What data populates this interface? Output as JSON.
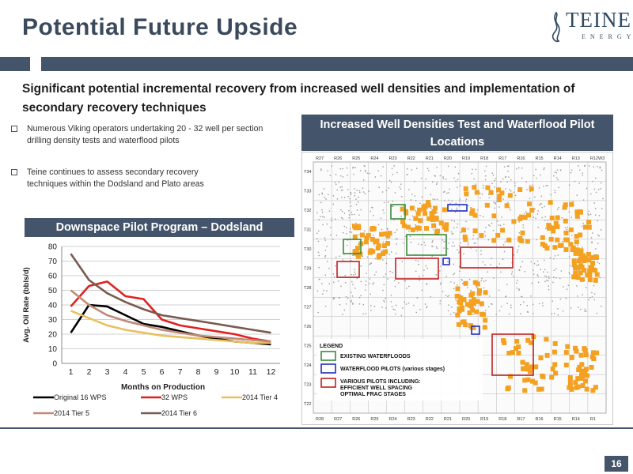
{
  "title": "Potential Future Upside",
  "logo": {
    "word": "TEINE",
    "sub": "ENERGY"
  },
  "subtitle": "Significant potential incremental recovery from increased well densities and implementation of secondary recovery techniques",
  "bullets": [
    "Numerous Viking operators undertaking 20 - 32 well per section drilling density tests and waterflood pilots",
    "Teine continues to assess secondary recovery techniques within the Dodsland and Plato areas"
  ],
  "chart_header": "Downspace Pilot Program – Dodsland",
  "map_header": "Increased Well Densities Test and Waterflood Pilot Locations",
  "page_number": "16",
  "colors": {
    "band": "#44546a",
    "accent_orange": "#f4a020"
  },
  "chart_data": {
    "type": "line",
    "x": [
      1,
      2,
      3,
      4,
      5,
      6,
      7,
      8,
      9,
      10,
      11,
      12
    ],
    "xlabel": "Months on Production",
    "ylabel": "Avg. Oil Rate (bbls/d)",
    "ylim": [
      0,
      80
    ],
    "yticks": [
      0,
      10,
      20,
      30,
      40,
      50,
      60,
      70,
      80
    ],
    "grid": true,
    "legend": "bottom",
    "series": [
      {
        "name": "Original 16 WPS",
        "color": "#000000",
        "values": [
          21,
          40,
          39,
          33,
          27,
          25,
          22,
          19,
          17,
          15,
          14,
          13
        ]
      },
      {
        "name": "32 WPS",
        "color": "#e02020",
        "values": [
          39,
          53,
          56,
          46,
          44,
          30,
          26,
          24,
          22,
          20,
          17,
          15
        ]
      },
      {
        "name": "2014 Tier 4",
        "color": "#e8c060",
        "values": [
          36,
          31,
          26,
          23,
          21,
          19,
          18,
          17,
          16,
          15,
          14,
          14
        ]
      },
      {
        "name": "2014 Tier 5",
        "color": "#c08a78",
        "values": [
          50,
          40,
          33,
          29,
          26,
          23,
          21,
          19,
          18,
          17,
          16,
          15
        ]
      },
      {
        "name": "2014 Tier 6",
        "color": "#7a5a50",
        "values": [
          75,
          57,
          48,
          42,
          37,
          33,
          31,
          29,
          27,
          25,
          23,
          21
        ]
      }
    ]
  },
  "map": {
    "top_ranges": [
      "R27",
      "R26",
      "R25",
      "R24",
      "R23",
      "R22",
      "R21",
      "R20",
      "R19",
      "R18",
      "R17",
      "R16",
      "R15",
      "R14",
      "R13",
      "R12W3"
    ],
    "bottom_ranges": [
      "R28",
      "R27",
      "R26",
      "R25",
      "R24",
      "R23",
      "R22",
      "R21",
      "R20",
      "R19",
      "R18",
      "R17",
      "R16",
      "R15",
      "R14",
      "R1"
    ],
    "townships": [
      "T34",
      "T33",
      "T32",
      "T31",
      "T30",
      "T29",
      "T28",
      "T27",
      "T26",
      "T25",
      "T24",
      "T23",
      "T22"
    ],
    "legend": {
      "title": "LEGEND",
      "items": [
        {
          "label": "EXISTING WATERFLOODS",
          "color": "#3a8a3a"
        },
        {
          "label": "WATERFLOOD PILOTS (various stages)",
          "color": "#2030c0"
        },
        {
          "label": "VARIOUS PILOTS INCLUDING: EFFICIENT WELL SPACING OPTIMAL FRAC STAGES",
          "color": "#c02020"
        }
      ]
    }
  }
}
